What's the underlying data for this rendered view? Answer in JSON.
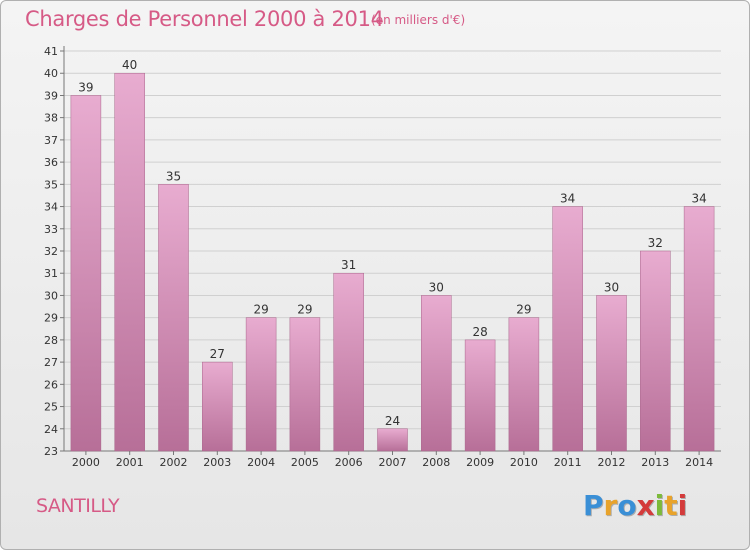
{
  "header": {
    "title": "Charges de Personnel 2000 à 2014",
    "subtitle": "(en milliers d'€)"
  },
  "footer": {
    "place": "SANTILLY",
    "logo": "Proxiti",
    "logo_colors": [
      "#3a8fd6",
      "#e8a32b",
      "#3a8fd6",
      "#d43b3b",
      "#7cba3a",
      "#e8a32b",
      "#d43b3b"
    ]
  },
  "colors": {
    "bar_top": "#e8acd0",
    "bar_bottom": "#b76f98",
    "title": "#d65a86"
  },
  "chart_data": {
    "type": "bar",
    "title": "Charges de Personnel 2000 à 2014",
    "subtitle": "(en milliers d'€)",
    "categories": [
      "2000",
      "2001",
      "2002",
      "2003",
      "2004",
      "2005",
      "2006",
      "2007",
      "2008",
      "2009",
      "2010",
      "2011",
      "2012",
      "2013",
      "2014"
    ],
    "values": [
      39,
      40,
      35,
      27,
      29,
      29,
      31,
      24,
      30,
      28,
      29,
      34,
      30,
      32,
      34
    ],
    "ylim": [
      23,
      41
    ],
    "yticks": [
      23,
      24,
      25,
      26,
      27,
      28,
      29,
      30,
      31,
      32,
      33,
      34,
      35,
      36,
      37,
      38,
      39,
      40,
      41
    ],
    "grid": true,
    "xlabel": "",
    "ylabel": ""
  }
}
